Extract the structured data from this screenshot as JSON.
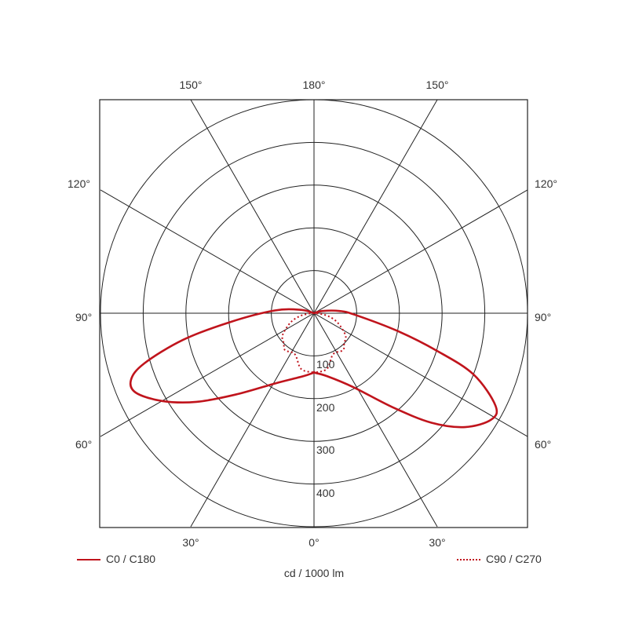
{
  "chart_data": {
    "type": "polar",
    "unit_label": "cd / 1000 lm",
    "radial_ticks": [
      100,
      200,
      300,
      400
    ],
    "radial_max": 500,
    "angle_labels": {
      "top": [
        "150°",
        "180°",
        "150°"
      ],
      "upper_side": "120°",
      "middle_side": "90°",
      "lower_side": "60°",
      "bottom": [
        "30°",
        "0°",
        "30°"
      ]
    },
    "grid": true,
    "legend_placement": "bottom",
    "series": [
      {
        "name": "C0 / C180",
        "style": "solid",
        "color": "#c0141c",
        "c0": [
          [
            0,
            139
          ],
          [
            12,
            151
          ],
          [
            28,
            196
          ],
          [
            40,
            288
          ],
          [
            47,
            376
          ],
          [
            53,
            443
          ],
          [
            59,
            484
          ],
          [
            63,
            477
          ],
          [
            69,
            400
          ],
          [
            73,
            301
          ],
          [
            78,
            200
          ],
          [
            88,
            95
          ],
          [
            95,
            60
          ],
          [
            105,
            20
          ],
          [
            120,
            0
          ]
        ],
        "c180": [
          [
            0,
            139
          ],
          [
            10,
            150
          ],
          [
            29,
            188
          ],
          [
            44,
            265
          ],
          [
            53,
            345
          ],
          [
            60,
            411
          ],
          [
            66,
            457
          ],
          [
            70,
            456
          ],
          [
            73.5,
            415
          ],
          [
            78.5,
            313
          ],
          [
            84,
            197
          ],
          [
            94,
            92
          ],
          [
            105,
            30
          ],
          [
            120,
            0
          ]
        ]
      },
      {
        "name": "C90 / C270",
        "style": "dotted",
        "color": "#c0141c",
        "c90": [
          [
            0,
            139
          ],
          [
            13,
            134
          ],
          [
            25,
            106
          ],
          [
            38,
            110
          ],
          [
            45,
            100
          ],
          [
            55,
            90
          ],
          [
            68,
            60
          ],
          [
            78,
            35
          ],
          [
            85,
            12
          ],
          [
            90,
            0
          ]
        ],
        "c270": [
          [
            0,
            139
          ],
          [
            13,
            134
          ],
          [
            25,
            106
          ],
          [
            38,
            110
          ],
          [
            45,
            100
          ],
          [
            55,
            90
          ],
          [
            68,
            60
          ],
          [
            78,
            35
          ],
          [
            85,
            12
          ],
          [
            90,
            0
          ]
        ]
      }
    ]
  }
}
